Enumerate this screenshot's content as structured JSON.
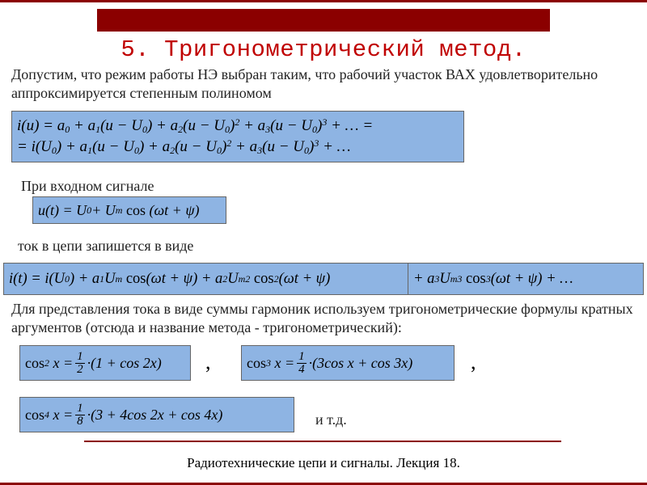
{
  "colors": {
    "accent_dark": "#8b0000",
    "accent_red": "#c00000",
    "formula_bg": "#8eb4e3",
    "formula_border": "#666666",
    "page_bg": "#ffffff",
    "text": "#222222"
  },
  "typography": {
    "heading_family": "Courier New",
    "body_family": "Times New Roman",
    "heading_size_pt": 22,
    "body_size_pt": 14,
    "formula_size_pt": 14
  },
  "heading": "5. Тригонометрический метод.",
  "text": {
    "intro": "Допустим, что режим работы НЭ выбран таким, что рабочий участок ВАХ удовлетворительно аппроксимируется степенным полиномом",
    "signal": "При входном сигнале",
    "current": "ток в цепи запишется в виде",
    "harmonics": "Для представления тока в виде суммы гармоник используем тригонометрические формулы кратных аргументов (отсюда и название метода - тригонометрический):",
    "etc": "и т.д."
  },
  "formulas": {
    "poly": {
      "line1": "i(u) = a₀ + a₁(u − U₀) + a₂(u − U₀)² + a₃(u − U₀)³ + … =",
      "line2": "= i(U₀) + a₁(u − U₀) + a₂(u − U₀)² + a₃(u − U₀)³ + …"
    },
    "ut": "u(t) = U₀ + Uₘ cos(ωt + ψ)",
    "it_part1": "i(t) = i(U₀) + a₁Uₘ cos(ωt + ψ) + a₂Uₘ² cos²(ωt + ψ)",
    "it_part2": "+ a₃Uₘ³ cos³(ωt + ψ) + …",
    "cos2": {
      "lhs": "cos² x",
      "frac_n": "1",
      "frac_d": "2",
      "rhs": "(1 + cos 2x)"
    },
    "cos3": {
      "lhs": "cos³ x",
      "frac_n": "1",
      "frac_d": "4",
      "rhs": "(3cos x + cos 3x)"
    },
    "cos4": {
      "lhs": "cos⁴ x",
      "frac_n": "1",
      "frac_d": "8",
      "rhs": "(3 + 4cos 2x + cos 4x)"
    }
  },
  "footer": "Радиотехнические цепи и сигналы. Лекция 18."
}
